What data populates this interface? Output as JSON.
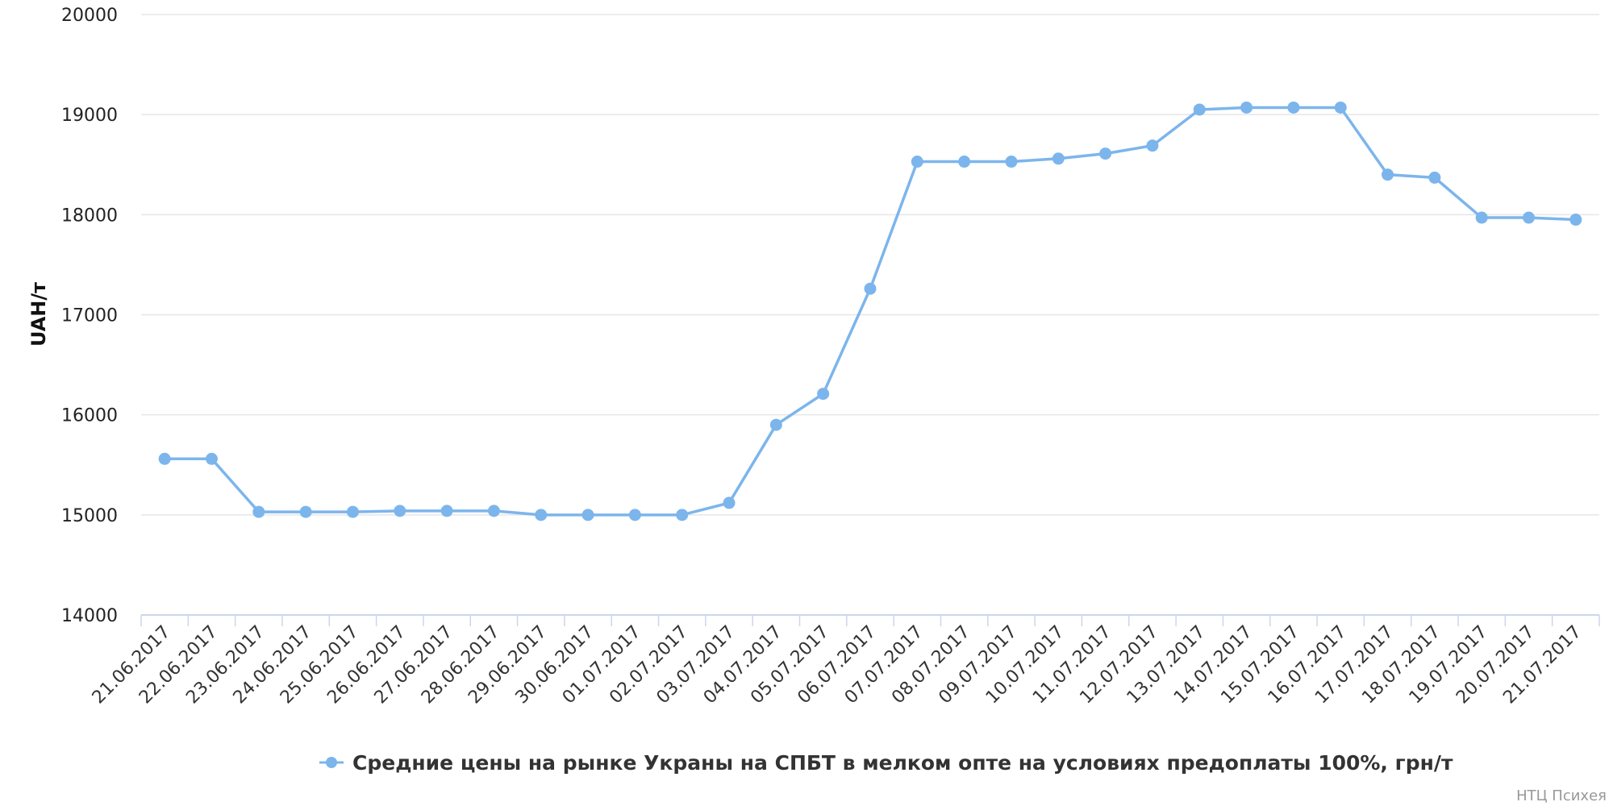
{
  "chart_data": {
    "type": "line",
    "ylabel": "UAH/т",
    "ylim": [
      14000,
      20000
    ],
    "yticks": [
      "14000",
      "15000",
      "16000",
      "17000",
      "18000",
      "19000",
      "20000"
    ],
    "grid": true,
    "legend_placement": "bottom-center",
    "categories": [
      "21.06.2017",
      "22.06.2017",
      "23.06.2017",
      "24.06.2017",
      "25.06.2017",
      "26.06.2017",
      "27.06.2017",
      "28.06.2017",
      "29.06.2017",
      "30.06.2017",
      "01.07.2017",
      "02.07.2017",
      "03.07.2017",
      "04.07.2017",
      "05.07.2017",
      "06.07.2017",
      "07.07.2017",
      "08.07.2017",
      "09.07.2017",
      "10.07.2017",
      "11.07.2017",
      "12.07.2017",
      "13.07.2017",
      "14.07.2017",
      "15.07.2017",
      "16.07.2017",
      "17.07.2017",
      "18.07.2017",
      "19.07.2017",
      "20.07.2017",
      "21.07.2017"
    ],
    "series": [
      {
        "name": "Средние цены на рынке Украны на СПБТ в мелком опте на условиях предоплаты 100%, грн/т",
        "color": "#7cb5ec",
        "values": [
          15560,
          15560,
          15030,
          15030,
          15030,
          15040,
          15040,
          15040,
          15000,
          15000,
          15000,
          15000,
          15120,
          15900,
          16210,
          17260,
          18530,
          18530,
          18530,
          18560,
          18610,
          18690,
          19050,
          19070,
          19070,
          19070,
          18400,
          18370,
          17970,
          17970,
          17950
        ]
      }
    ]
  },
  "credit": "НТЦ Психея"
}
